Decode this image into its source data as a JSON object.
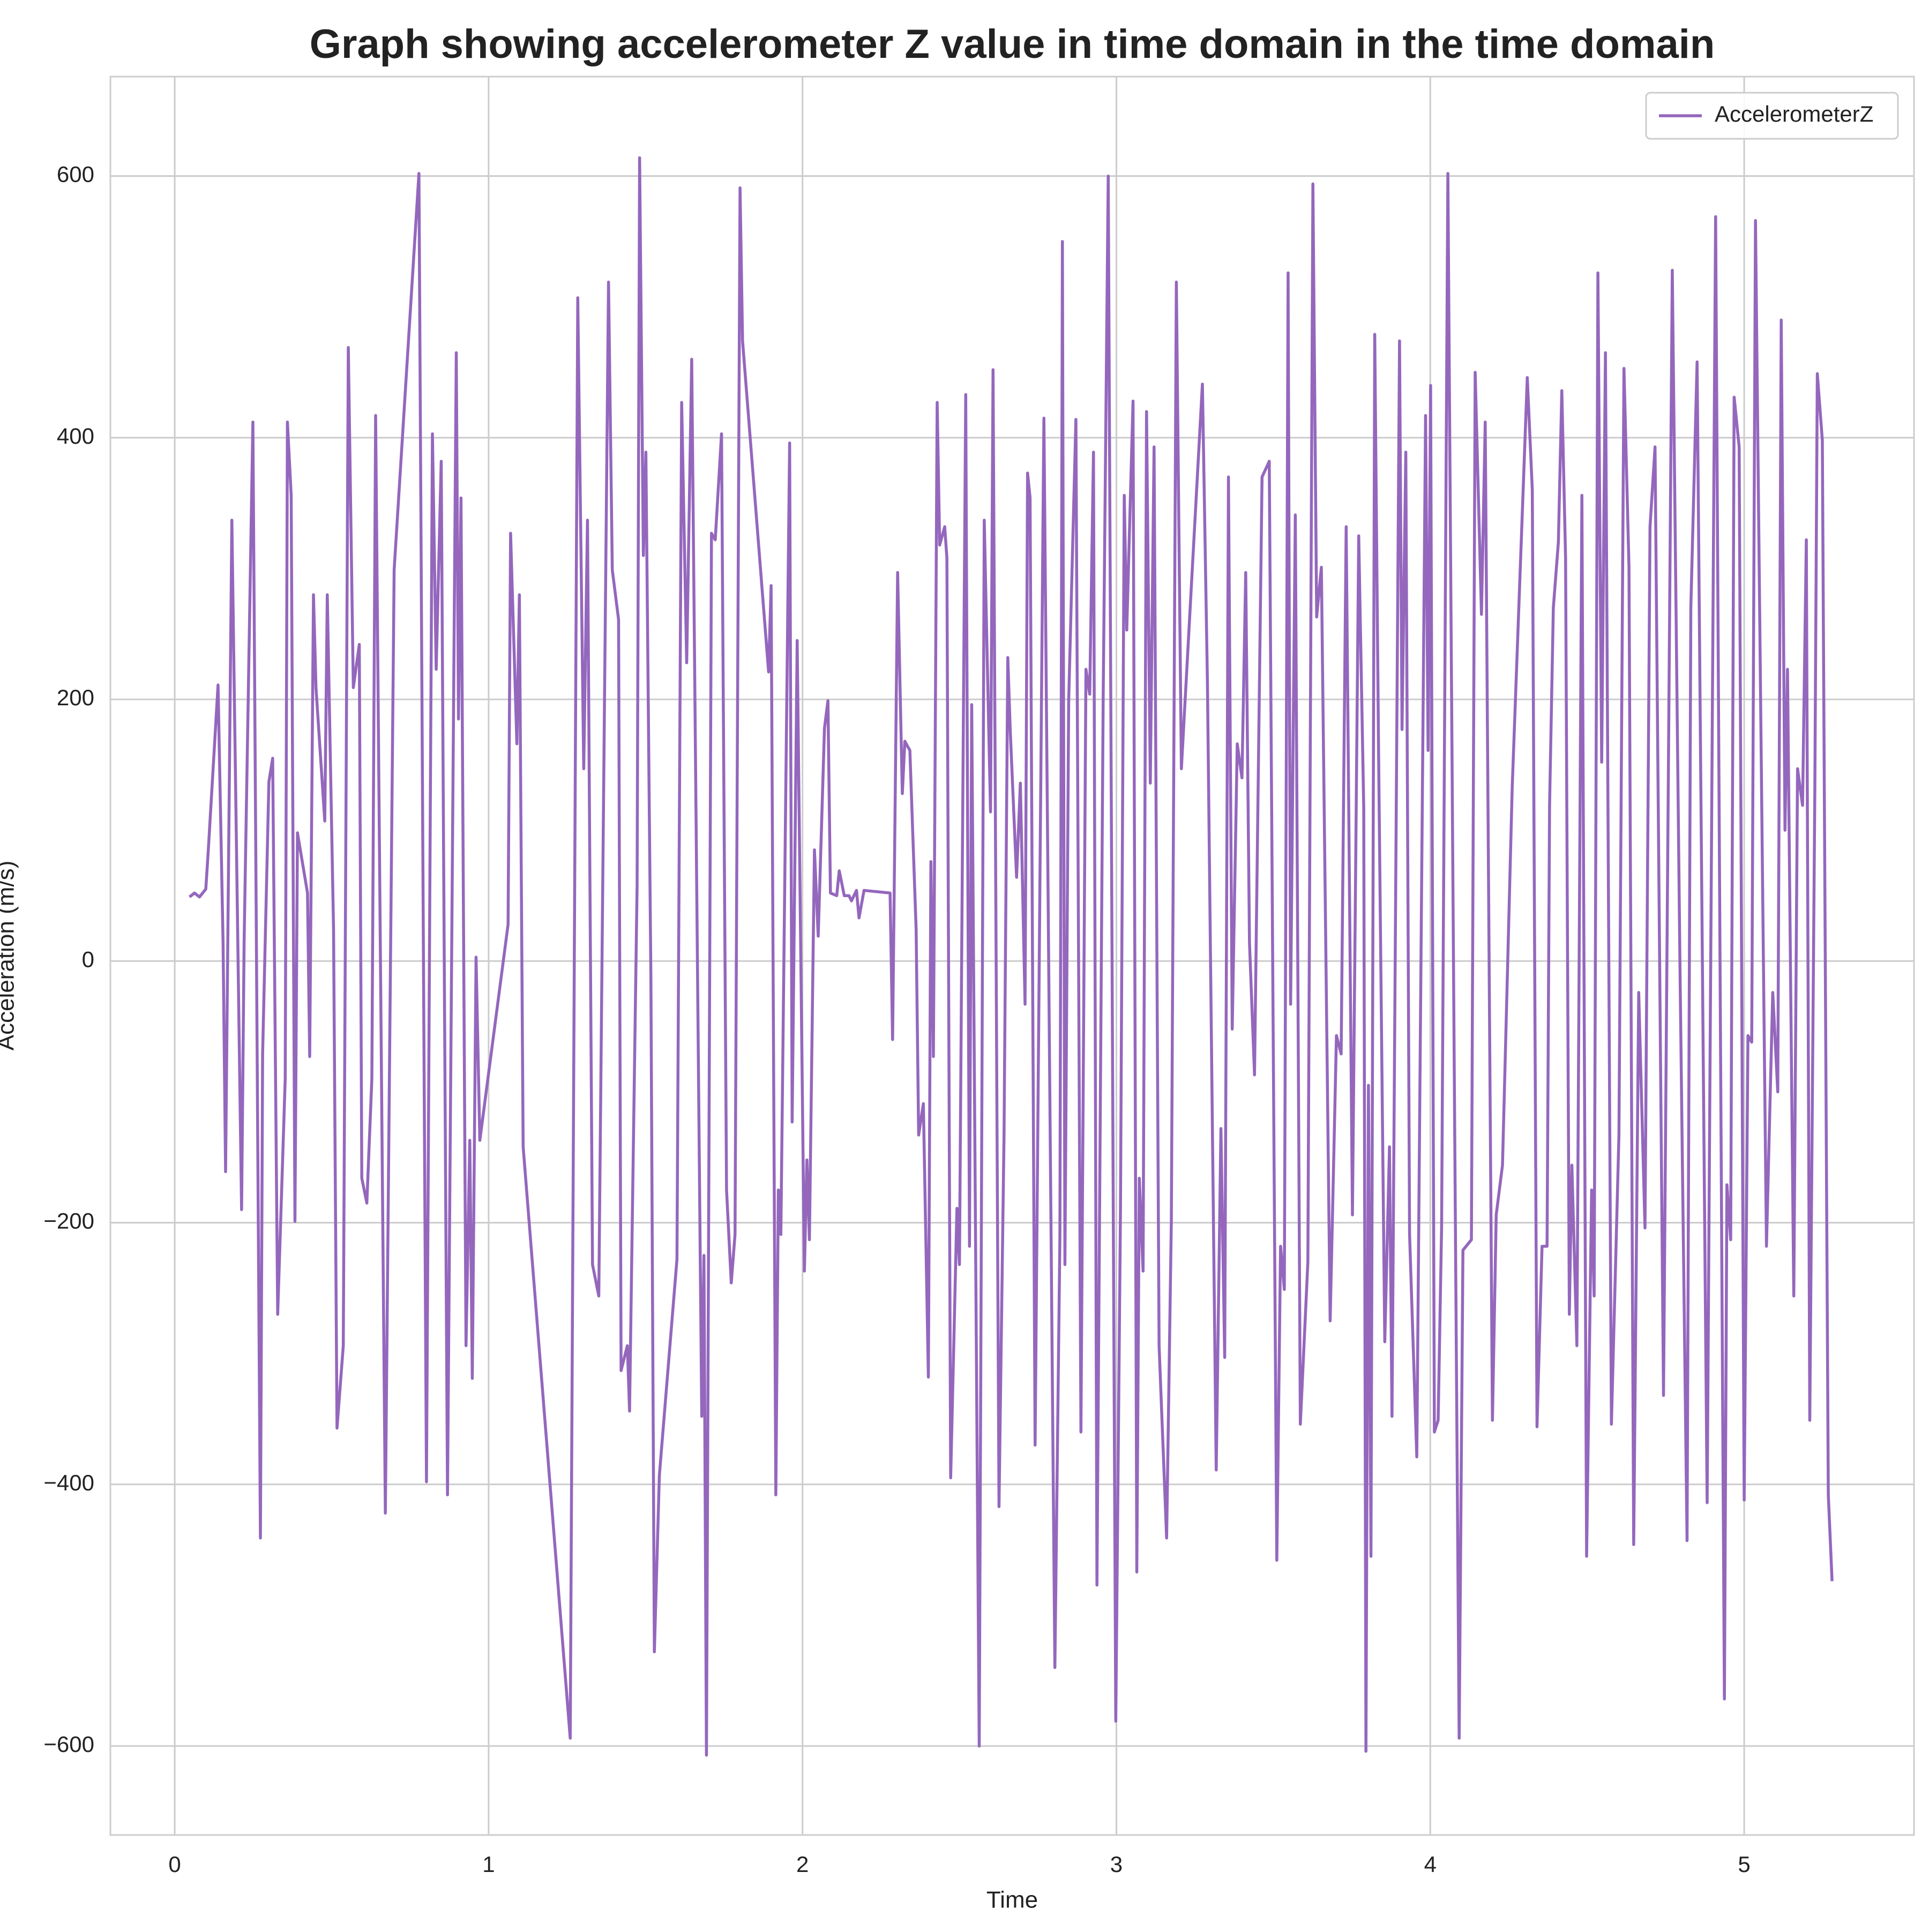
{
  "chart_data": {
    "type": "line",
    "title": "Graph showing accelerometer Z value in time domain in the time domain",
    "x_label": "Time",
    "y_label": "Acceleration (m/s)",
    "xlim": [
      -0.205,
      5.541
    ],
    "ylim": [
      -668,
      676
    ],
    "xticks": [
      0,
      1,
      2,
      3,
      4,
      5
    ],
    "yticks": [
      {
        "value": -600,
        "label": "−600"
      },
      {
        "value": -400,
        "label": "−400"
      },
      {
        "value": -200,
        "label": "−200"
      },
      0,
      200,
      400,
      600
    ],
    "grid": true,
    "legend": "upper right",
    "x": [
      0.047,
      0.063,
      0.079,
      0.099,
      0.107,
      0.138,
      0.154,
      0.162,
      0.182,
      0.213,
      0.221,
      0.249,
      0.273,
      0.28,
      0.3,
      0.312,
      0.328,
      0.352,
      0.359,
      0.371,
      0.383,
      0.391,
      0.423,
      0.43,
      0.442,
      0.45,
      0.478,
      0.486,
      0.506,
      0.517,
      0.537,
      0.553,
      0.569,
      0.588,
      0.596,
      0.612,
      0.628,
      0.64,
      0.671,
      0.699,
      0.778,
      0.802,
      0.821,
      0.833,
      0.849,
      0.869,
      0.897,
      0.904,
      0.912,
      0.928,
      0.94,
      0.948,
      0.96,
      0.972,
      1.062,
      1.07,
      1.09,
      1.098,
      1.11,
      1.26,
      1.284,
      1.303,
      1.315,
      1.331,
      1.351,
      1.382,
      1.394,
      1.414,
      1.422,
      1.442,
      1.449,
      1.473,
      1.481,
      1.493,
      1.501,
      1.517,
      1.528,
      1.544,
      1.6,
      1.615,
      1.631,
      1.647,
      1.679,
      1.686,
      1.694,
      1.71,
      1.722,
      1.742,
      1.758,
      1.773,
      1.785,
      1.801,
      1.809,
      1.892,
      1.9,
      1.915,
      1.923,
      1.931,
      1.959,
      1.967,
      1.983,
      2.006,
      2.014,
      2.022,
      2.038,
      2.05,
      2.07,
      2.081,
      2.089,
      2.109,
      2.117,
      2.133,
      2.148,
      2.156,
      2.172,
      2.18,
      2.196,
      2.279,
      2.287,
      2.303,
      2.318,
      2.326,
      2.342,
      2.362,
      2.37,
      2.385,
      2.401,
      2.409,
      2.417,
      2.429,
      2.437,
      2.453,
      2.46,
      2.472,
      2.492,
      2.5,
      2.52,
      2.532,
      2.539,
      2.563,
      2.579,
      2.599,
      2.607,
      2.626,
      2.642,
      2.654,
      2.662,
      2.682,
      2.694,
      2.709,
      2.717,
      2.725,
      2.741,
      2.769,
      2.804,
      2.82,
      2.828,
      2.836,
      2.848,
      2.871,
      2.887,
      2.903,
      2.915,
      2.927,
      2.938,
      2.958,
      2.974,
      2.998,
      3.013,
      3.025,
      3.033,
      3.053,
      3.065,
      3.073,
      3.085,
      3.096,
      3.108,
      3.12,
      3.136,
      3.16,
      3.175,
      3.191,
      3.207,
      3.274,
      3.29,
      3.318,
      3.333,
      3.345,
      3.357,
      3.369,
      3.385,
      3.4,
      3.412,
      3.424,
      3.44,
      3.464,
      3.487,
      3.511,
      3.523,
      3.535,
      3.547,
      3.555,
      3.57,
      3.586,
      3.61,
      3.626,
      3.638,
      3.653,
      3.681,
      3.701,
      3.716,
      3.732,
      3.752,
      3.772,
      3.788,
      3.795,
      3.803,
      3.811,
      3.823,
      3.835,
      3.855,
      3.87,
      3.878,
      3.902,
      3.91,
      3.922,
      3.934,
      3.957,
      3.985,
      3.993,
      4.001,
      4.013,
      4.025,
      4.036,
      4.056,
      4.076,
      4.092,
      4.104,
      4.131,
      4.143,
      4.163,
      4.175,
      4.198,
      4.21,
      4.23,
      4.261,
      4.309,
      4.325,
      4.34,
      4.356,
      4.372,
      4.38,
      4.392,
      4.408,
      4.419,
      4.431,
      4.443,
      4.451,
      4.467,
      4.483,
      4.498,
      4.514,
      4.522,
      4.534,
      4.546,
      4.558,
      4.577,
      4.601,
      4.617,
      4.633,
      4.648,
      4.664,
      4.684,
      4.7,
      4.716,
      4.743,
      4.771,
      4.795,
      4.818,
      4.83,
      4.85,
      4.882,
      4.909,
      4.937,
      4.945,
      4.957,
      4.968,
      4.984,
      5.0,
      5.012,
      5.024,
      5.036,
      5.071,
      5.091,
      5.107,
      5.118,
      5.13,
      5.138,
      5.158,
      5.17,
      5.186,
      5.198,
      5.209,
      5.225,
      5.233,
      5.249,
      5.268,
      5.28
    ],
    "series": [
      {
        "name": "AccelerometerZ",
        "color": "#9467bd",
        "values": [
          49,
          52,
          49,
          55,
          85,
          211,
          14,
          -161,
          337,
          -190,
          14,
          412,
          -441,
          -71,
          137,
          155,
          -270,
          -90,
          412,
          356,
          -199,
          98,
          52,
          -73,
          280,
          209,
          107,
          280,
          24,
          -357,
          -294,
          469,
          209,
          242,
          -166,
          -185,
          -90,
          417,
          -422,
          299,
          602,
          -398,
          403,
          223,
          382,
          -408,
          465,
          185,
          354,
          -294,
          -137,
          -319,
          3,
          -137,
          28,
          327,
          166,
          280,
          -142,
          -594,
          507,
          147,
          337,
          -232,
          -256,
          519,
          299,
          261,
          -313,
          -294,
          -344,
          57,
          614,
          310,
          389,
          -14,
          -528,
          -393,
          -228,
          427,
          228,
          460,
          -348,
          -225,
          -607,
          327,
          322,
          403,
          -175,
          -246,
          -209,
          591,
          474,
          221,
          287,
          -408,
          -175,
          -209,
          396,
          -123,
          245,
          -237,
          -152,
          -213,
          85,
          19,
          178,
          199,
          52,
          50,
          69,
          50,
          50,
          46,
          54,
          33,
          54,
          52,
          -60,
          297,
          128,
          168,
          161,
          24,
          -133,
          -109,
          -318,
          76,
          -73,
          427,
          318,
          332,
          308,
          -395,
          -189,
          -232,
          433,
          -218,
          196,
          -600,
          337,
          114,
          452,
          -417,
          -133,
          232,
          175,
          64,
          136,
          -33,
          373,
          354,
          -370,
          415,
          -540,
          -211,
          550,
          -232,
          199,
          414,
          -360,
          223,
          204,
          389,
          -477,
          204,
          600,
          -581,
          -190,
          356,
          253,
          428,
          -467,
          -166,
          -237,
          420,
          136,
          393,
          -294,
          -441,
          -199,
          519,
          147,
          441,
          213,
          -389,
          -128,
          -303,
          370,
          -52,
          166,
          140,
          297,
          14,
          -87,
          370,
          382,
          -458,
          -218,
          -251,
          526,
          -33,
          341,
          -354,
          -230,
          594,
          263,
          301,
          -275,
          -57,
          -71,
          332,
          -194,
          325,
          117,
          -604,
          -95,
          -455,
          479,
          166,
          -291,
          -142,
          -348,
          474,
          177,
          389,
          -209,
          -379,
          417,
          161,
          440,
          -360,
          -351,
          -204,
          602,
          -71,
          -594,
          -221,
          -213,
          450,
          265,
          412,
          -351,
          -194,
          -156,
          133,
          446,
          360,
          -356,
          -218,
          -218,
          119,
          270,
          320,
          436,
          308,
          -270,
          -156,
          -294,
          356,
          -455,
          -175,
          -256,
          526,
          152,
          465,
          -354,
          -133,
          453,
          301,
          -446,
          -24,
          -204,
          332,
          393,
          -332,
          528,
          5,
          -443,
          270,
          458,
          -414,
          569,
          -564,
          -171,
          -213,
          431,
          393,
          -412,
          -57,
          -62,
          566,
          -218,
          -24,
          -100,
          490,
          100,
          223,
          -256,
          147,
          119,
          322,
          -351,
          128,
          449,
          398,
          -408,
          -474
        ]
      }
    ]
  }
}
